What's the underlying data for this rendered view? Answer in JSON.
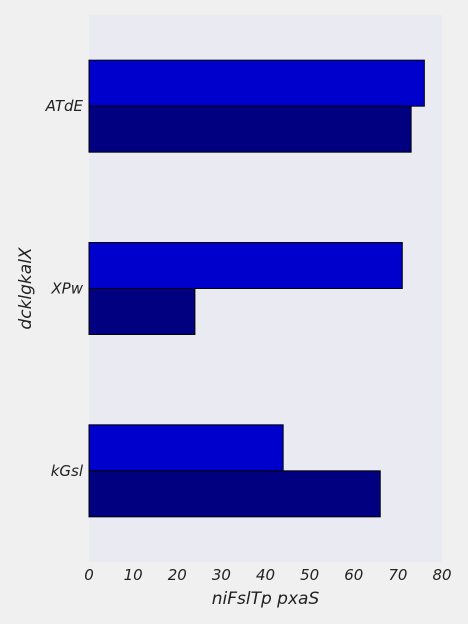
{
  "chart_data": {
    "type": "bar",
    "orientation": "horizontal",
    "title": "",
    "xlabel": "niFslTp pxaS",
    "ylabel": "dcklgkalX",
    "categories": [
      "ATdE",
      "XPw",
      "kGsl"
    ],
    "series": [
      {
        "values": [
          76,
          71,
          44
        ],
        "color": "#0000cd"
      },
      {
        "values": [
          73,
          24,
          66
        ],
        "color": "#000080"
      }
    ],
    "xlim": [
      0,
      80
    ],
    "xticks": [
      0,
      10,
      20,
      30,
      40,
      50,
      60,
      70,
      80
    ],
    "grid": false,
    "legend": "none",
    "colors": {
      "plot_background": "#eaeaf2",
      "page_background": "#f0f0f0",
      "bar_edge": "#000000"
    }
  }
}
